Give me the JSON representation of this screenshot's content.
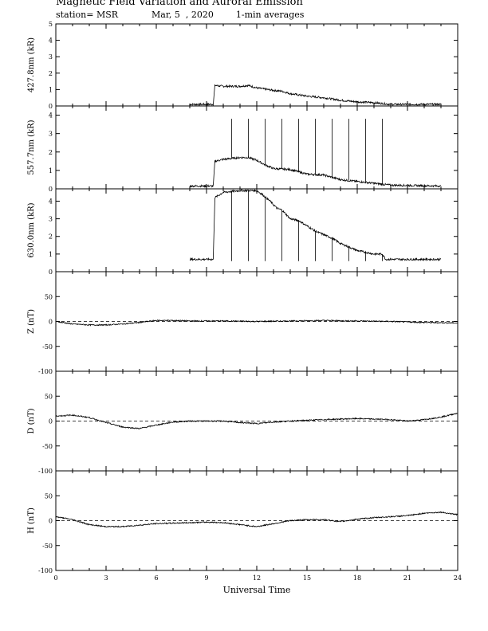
{
  "header": {
    "title": "Magnetic Field Variation and Auroral Emission",
    "station": "station= MSR",
    "date": "Mar, 5  , 2020",
    "averaging": "1-min averages"
  },
  "chart_data": [
    {
      "type": "line",
      "ylabel": "427.8nm (kR)",
      "xlim": [
        0,
        24
      ],
      "ylim": [
        0,
        5
      ],
      "yticks": [
        0,
        1,
        2,
        3,
        4,
        5
      ],
      "data_window": [
        8,
        23
      ],
      "points": [
        [
          8,
          0.1
        ],
        [
          9.4,
          0.1
        ],
        [
          9.5,
          1.25
        ],
        [
          10,
          1.2
        ],
        [
          11,
          1.2
        ],
        [
          11.5,
          1.25
        ],
        [
          12,
          1.1
        ],
        [
          13,
          0.95
        ],
        [
          13.5,
          0.9
        ],
        [
          14,
          0.75
        ],
        [
          15,
          0.6
        ],
        [
          16,
          0.5
        ],
        [
          17,
          0.35
        ],
        [
          18,
          0.25
        ],
        [
          19,
          0.2
        ],
        [
          19.5,
          0.15
        ],
        [
          20,
          0.1
        ],
        [
          23,
          0.1
        ]
      ],
      "spikes": []
    },
    {
      "type": "line",
      "ylabel": "557.7nm (kR)",
      "xlim": [
        0,
        24
      ],
      "ylim": [
        0,
        4.5
      ],
      "yticks": [
        0,
        1,
        2,
        3,
        4
      ],
      "data_window": [
        8,
        23
      ],
      "points": [
        [
          8,
          0.15
        ],
        [
          9.4,
          0.15
        ],
        [
          9.5,
          1.5
        ],
        [
          10,
          1.6
        ],
        [
          11,
          1.7
        ],
        [
          11.5,
          1.7
        ],
        [
          12,
          1.55
        ],
        [
          12.5,
          1.3
        ],
        [
          13,
          1.1
        ],
        [
          14,
          1.05
        ],
        [
          15,
          0.8
        ],
        [
          16,
          0.75
        ],
        [
          17,
          0.5
        ],
        [
          18,
          0.4
        ],
        [
          19,
          0.3
        ],
        [
          19.5,
          0.25
        ],
        [
          20,
          0.2
        ],
        [
          23,
          0.15
        ]
      ],
      "spikes": [
        [
          10.5,
          3.8
        ],
        [
          11.5,
          3.8
        ],
        [
          12.5,
          3.8
        ],
        [
          13.5,
          3.8
        ],
        [
          14.5,
          3.8
        ],
        [
          15.5,
          3.8
        ],
        [
          16.5,
          3.8
        ],
        [
          17.5,
          3.8
        ],
        [
          18.5,
          3.8
        ],
        [
          19.5,
          3.8
        ]
      ]
    },
    {
      "type": "line",
      "ylabel": "630.0nm (kR)",
      "xlim": [
        0,
        24
      ],
      "ylim": [
        0,
        4.7
      ],
      "yticks": [
        0,
        1,
        2,
        3,
        4
      ],
      "data_window": [
        8,
        23
      ],
      "points": [
        [
          8,
          0.7
        ],
        [
          9.4,
          0.7
        ],
        [
          9.5,
          4.2
        ],
        [
          10,
          4.5
        ],
        [
          11,
          4.6
        ],
        [
          11.5,
          4.6
        ],
        [
          12,
          4.6
        ],
        [
          12.3,
          4.4
        ],
        [
          12.8,
          4.0
        ],
        [
          13.2,
          3.6
        ],
        [
          13.5,
          3.5
        ],
        [
          14,
          3.0
        ],
        [
          14.5,
          2.9
        ],
        [
          15,
          2.6
        ],
        [
          15.5,
          2.3
        ],
        [
          16,
          2.1
        ],
        [
          16.5,
          1.9
        ],
        [
          17,
          1.6
        ],
        [
          17.5,
          1.4
        ],
        [
          18,
          1.2
        ],
        [
          19,
          1.0
        ],
        [
          19.5,
          1.0
        ],
        [
          19.7,
          0.7
        ],
        [
          23,
          0.7
        ]
      ],
      "spikes": [
        [
          10.5,
          0.6
        ],
        [
          11.5,
          0.6
        ],
        [
          12.5,
          0.6
        ],
        [
          13.5,
          0.6
        ],
        [
          14.5,
          0.6
        ],
        [
          15.5,
          0.6
        ],
        [
          16.5,
          0.6
        ],
        [
          17.5,
          0.6
        ],
        [
          18.5,
          0.6
        ],
        [
          19.5,
          0.6
        ]
      ]
    },
    {
      "type": "line",
      "ylabel": "Z (nT)",
      "xlim": [
        0,
        24
      ],
      "ylim": [
        -100,
        100
      ],
      "yticks": [
        -100,
        -50,
        0,
        50
      ],
      "zero_line": true,
      "points": [
        [
          0,
          0
        ],
        [
          1,
          -5
        ],
        [
          2,
          -7
        ],
        [
          3,
          -7
        ],
        [
          4,
          -5
        ],
        [
          5,
          -2
        ],
        [
          6,
          2
        ],
        [
          7,
          2
        ],
        [
          8,
          1
        ],
        [
          10,
          1
        ],
        [
          12,
          0
        ],
        [
          14,
          1
        ],
        [
          16,
          2
        ],
        [
          18,
          1
        ],
        [
          20,
          0
        ],
        [
          22,
          -2
        ],
        [
          24,
          -3
        ]
      ]
    },
    {
      "type": "line",
      "ylabel": "D (nT)",
      "xlim": [
        0,
        24
      ],
      "ylim": [
        -100,
        100
      ],
      "yticks": [
        -100,
        -50,
        0,
        50
      ],
      "zero_line": true,
      "points": [
        [
          0,
          10
        ],
        [
          1,
          12
        ],
        [
          2,
          7
        ],
        [
          3,
          -3
        ],
        [
          4,
          -12
        ],
        [
          5,
          -15
        ],
        [
          6,
          -8
        ],
        [
          7,
          -2
        ],
        [
          8,
          0
        ],
        [
          10,
          0
        ],
        [
          11,
          -3
        ],
        [
          12,
          -5
        ],
        [
          13,
          -2
        ],
        [
          14,
          0
        ],
        [
          16,
          3
        ],
        [
          18,
          5
        ],
        [
          20,
          3
        ],
        [
          21,
          0
        ],
        [
          22,
          3
        ],
        [
          23,
          8
        ],
        [
          24,
          16
        ]
      ]
    },
    {
      "type": "line",
      "ylabel": "H (nT)",
      "xlim": [
        0,
        24
      ],
      "ylim": [
        -100,
        100
      ],
      "yticks": [
        -100,
        -50,
        0,
        50
      ],
      "zero_line": true,
      "points": [
        [
          0,
          8
        ],
        [
          1,
          2
        ],
        [
          2,
          -8
        ],
        [
          3,
          -12
        ],
        [
          4,
          -12
        ],
        [
          5,
          -9
        ],
        [
          6,
          -6
        ],
        [
          7,
          -5
        ],
        [
          8,
          -4
        ],
        [
          9,
          -3
        ],
        [
          10,
          -4
        ],
        [
          11,
          -8
        ],
        [
          12,
          -12
        ],
        [
          13,
          -6
        ],
        [
          14,
          0
        ],
        [
          15,
          2
        ],
        [
          16,
          2
        ],
        [
          17,
          -2
        ],
        [
          18,
          3
        ],
        [
          19,
          6
        ],
        [
          20,
          8
        ],
        [
          21,
          10
        ],
        [
          22,
          15
        ],
        [
          23,
          17
        ],
        [
          24,
          12
        ]
      ]
    }
  ],
  "xaxis": {
    "label": "Universal Time",
    "ticks": [
      0,
      3,
      6,
      9,
      12,
      15,
      18,
      21,
      24
    ]
  }
}
